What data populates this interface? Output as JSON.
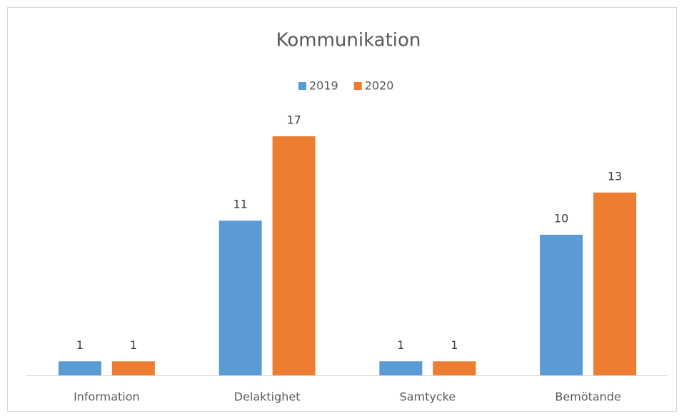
{
  "chart_data": {
    "type": "bar",
    "title": "Kommunikation",
    "categories": [
      "Information",
      "Delaktighet",
      "Samtycke",
      "Bemötande"
    ],
    "series": [
      {
        "name": "2019",
        "color": "#5b9bd5",
        "values": [
          1,
          11,
          1,
          10
        ]
      },
      {
        "name": "2020",
        "color": "#ed7d31",
        "values": [
          1,
          17,
          1,
          13
        ]
      }
    ],
    "legend": "top"
  }
}
